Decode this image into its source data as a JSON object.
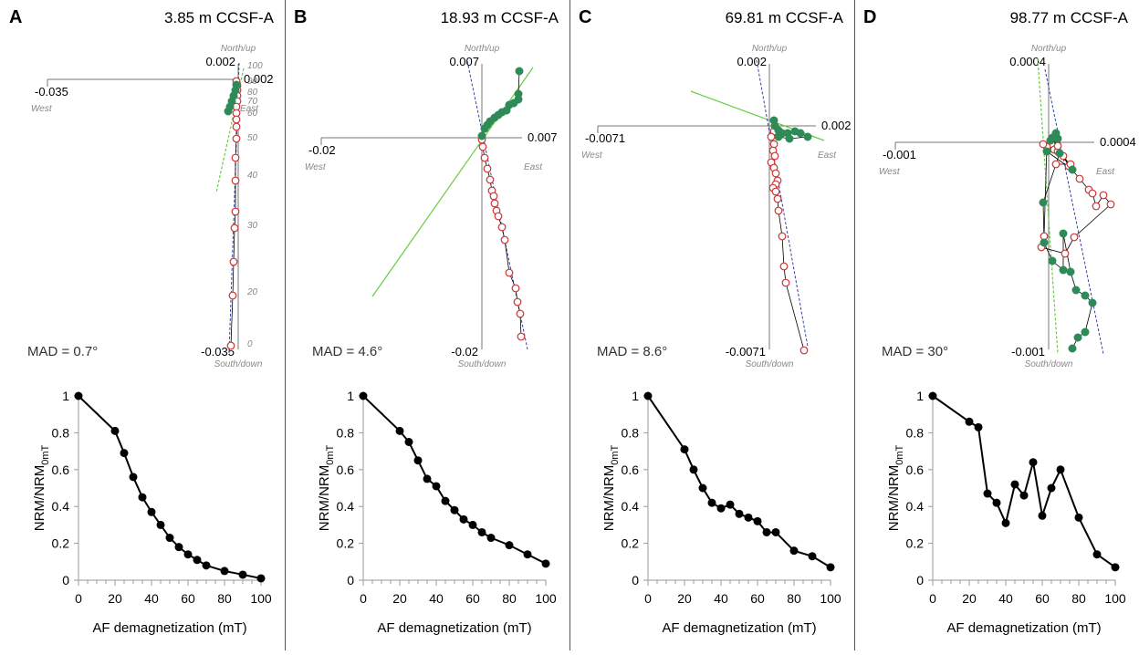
{
  "figure": {
    "panels": [
      {
        "letter": "A",
        "depth_label": "3.85 m CCSF-A",
        "mad_label": "MAD = 0.7°",
        "zij": {
          "north_label": "North/up",
          "south_label": "South/down",
          "west_label": "West",
          "east_label": "East",
          "top_tick": "0.002",
          "bottom_tick": "-0.035",
          "left_tick": "-0.035",
          "right_tick": "0.002",
          "step_labels": [
            "100",
            "90",
            "80",
            "70",
            "60",
            "50",
            "40",
            "30",
            "20",
            "0"
          ]
        },
        "ylabel": "NRM/NRM",
        "ylabel_sub": "0mT"
      },
      {
        "letter": "B",
        "depth_label": "18.93 m CCSF-A",
        "mad_label": "MAD = 4.6°",
        "zij": {
          "north_label": "North/up",
          "south_label": "South/down",
          "west_label": "West",
          "east_label": "East",
          "top_tick": "0.007",
          "bottom_tick": "-0.02",
          "left_tick": "-0.02",
          "right_tick": "0.007"
        },
        "ylabel": "NRM/NRM",
        "ylabel_sub": "0mT"
      },
      {
        "letter": "C",
        "depth_label": "69.81 m CCSF-A",
        "mad_label": "MAD = 8.6°",
        "zij": {
          "north_label": "North/up",
          "south_label": "South/down",
          "west_label": "West",
          "east_label": "East",
          "top_tick": "0.002",
          "bottom_tick": "-0.0071",
          "left_tick": "-0.0071",
          "right_tick": "0.002"
        },
        "ylabel": "NRM/NRM",
        "ylabel_sub": "0mT"
      },
      {
        "letter": "D",
        "depth_label": "98.77 m CCSF-A",
        "mad_label": "MAD = 30°",
        "zij": {
          "north_label": "North/up",
          "south_label": "South/down",
          "west_label": "West",
          "east_label": "East",
          "top_tick": "0.0004",
          "bottom_tick": "-0.001",
          "left_tick": "-0.001",
          "right_tick": "0.0004"
        },
        "ylabel": "NRM/NRM",
        "ylabel_sub": "0mT"
      }
    ]
  },
  "colors": {
    "open_point_stroke": "#cc3333",
    "filled_point": "#2e8b57",
    "decay_points": "#000000",
    "fit_green": "#66cc44",
    "fit_blue": "#3344aa"
  },
  "chart_data": [
    {
      "type": "line",
      "title": "3.85 m CCSF-A",
      "xlabel": "AF demagnetization (mT)",
      "ylabel": "NRM/NRM0mT",
      "xlim": [
        0,
        100
      ],
      "ylim": [
        0,
        1
      ],
      "x_ticks": [
        "0",
        "20",
        "40",
        "60",
        "80",
        "100"
      ],
      "y_ticks": [
        "0",
        "0.2",
        "0.4",
        "0.6",
        "0.8",
        "1"
      ],
      "grid": false,
      "x": [
        0,
        20,
        25,
        30,
        35,
        40,
        45,
        50,
        55,
        60,
        65,
        70,
        80,
        90,
        100
      ],
      "values": [
        1.0,
        0.81,
        0.69,
        0.56,
        0.45,
        0.37,
        0.3,
        0.23,
        0.18,
        0.14,
        0.11,
        0.08,
        0.05,
        0.03,
        0.01
      ]
    },
    {
      "type": "line",
      "title": "18.93 m CCSF-A",
      "xlabel": "AF demagnetization (mT)",
      "ylabel": "NRM/NRM0mT",
      "xlim": [
        0,
        100
      ],
      "ylim": [
        0,
        1
      ],
      "x_ticks": [
        "0",
        "20",
        "40",
        "60",
        "80",
        "100"
      ],
      "y_ticks": [
        "0",
        "0.2",
        "0.4",
        "0.6",
        "0.8",
        "1"
      ],
      "grid": false,
      "x": [
        0,
        20,
        25,
        30,
        35,
        40,
        45,
        50,
        55,
        60,
        65,
        70,
        80,
        90,
        100
      ],
      "values": [
        1.0,
        0.81,
        0.75,
        0.65,
        0.55,
        0.51,
        0.43,
        0.38,
        0.33,
        0.3,
        0.26,
        0.23,
        0.19,
        0.14,
        0.09
      ]
    },
    {
      "type": "line",
      "title": "69.81 m CCSF-A",
      "xlabel": "AF demagnetization (mT)",
      "ylabel": "NRM/NRM0mT",
      "xlim": [
        0,
        100
      ],
      "ylim": [
        0,
        1
      ],
      "x_ticks": [
        "0",
        "20",
        "40",
        "60",
        "80",
        "100"
      ],
      "y_ticks": [
        "0",
        "0.2",
        "0.4",
        "0.6",
        "0.8",
        "1"
      ],
      "grid": false,
      "x": [
        0,
        20,
        25,
        30,
        35,
        40,
        45,
        50,
        55,
        60,
        65,
        70,
        80,
        90,
        100
      ],
      "values": [
        1.0,
        0.71,
        0.6,
        0.5,
        0.42,
        0.39,
        0.41,
        0.36,
        0.34,
        0.32,
        0.26,
        0.26,
        0.16,
        0.13,
        0.07
      ]
    },
    {
      "type": "line",
      "title": "98.77 m CCSF-A",
      "xlabel": "AF demagnetization (mT)",
      "ylabel": "NRM/NRM0mT",
      "xlim": [
        0,
        100
      ],
      "ylim": [
        0,
        1
      ],
      "x_ticks": [
        "0",
        "20",
        "40",
        "60",
        "80",
        "100"
      ],
      "y_ticks": [
        "0",
        "0.2",
        "0.4",
        "0.6",
        "0.8",
        "1"
      ],
      "grid": false,
      "x": [
        0,
        20,
        25,
        30,
        35,
        40,
        45,
        50,
        55,
        60,
        65,
        70,
        80,
        90,
        100
      ],
      "values": [
        1.0,
        0.86,
        0.83,
        0.47,
        0.42,
        0.31,
        0.52,
        0.46,
        0.64,
        0.35,
        0.5,
        0.6,
        0.34,
        0.14,
        0.07
      ]
    }
  ]
}
